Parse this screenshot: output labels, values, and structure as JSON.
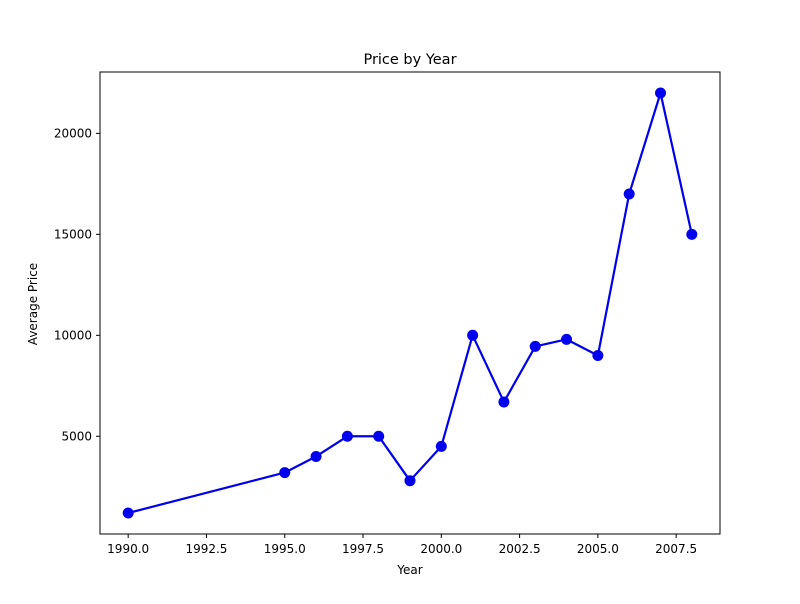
{
  "chart_data": {
    "type": "line",
    "title": "Price by Year",
    "xlabel": "Year",
    "ylabel": "Average Price",
    "xlim": [
      1989.1,
      2008.9
    ],
    "ylim": [
      160,
      23040
    ],
    "x_ticks": [
      1990.0,
      1992.5,
      1995.0,
      1997.5,
      2000.0,
      2002.5,
      2005.0,
      2007.5
    ],
    "x_tick_labels": [
      "1990.0",
      "1992.5",
      "1995.0",
      "1997.5",
      "2000.0",
      "2002.5",
      "2005.0",
      "2007.5"
    ],
    "y_ticks": [
      5000,
      10000,
      15000,
      20000
    ],
    "y_tick_labels": [
      "5000",
      "10000",
      "15000",
      "20000"
    ],
    "grid": false,
    "legend": "none",
    "series": [
      {
        "color": "#0000ee",
        "marker": "circle",
        "x": [
          1990,
          1995,
          1996,
          1997,
          1998,
          1999,
          2000,
          2001,
          2002,
          2003,
          2004,
          2005,
          2006,
          2007,
          2008
        ],
        "y": [
          1200,
          3200,
          4000,
          5000,
          5000,
          2800,
          4500,
          10000,
          6700,
          9450,
          9800,
          9000,
          17000,
          22000,
          15000
        ]
      }
    ]
  }
}
